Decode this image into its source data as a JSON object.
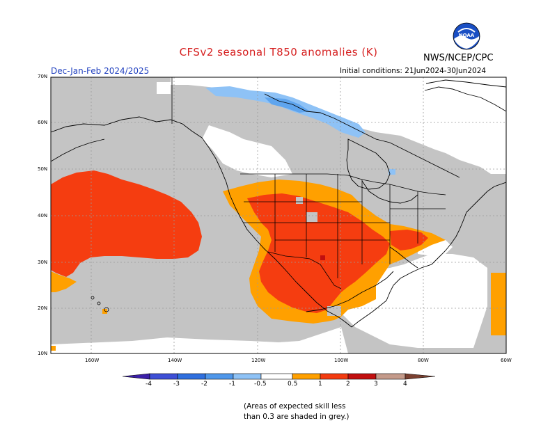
{
  "header": {
    "title": "CFSv2 seasonal T850 anomalies (K)",
    "agency": "NWS/NCEP/CPC",
    "season": "Dec-Jan-Feb 2024/2025",
    "initial_conditions": "Initial conditions: 21Jun2024-30Jun2024",
    "logo_text": "NOAA"
  },
  "map": {
    "region": "North America and Northeast Pacific",
    "lat_labels": [
      "70N",
      "60N",
      "50N",
      "40N",
      "30N",
      "20N",
      "10N"
    ],
    "lon_labels": [
      "160W",
      "140W",
      "120W",
      "100W",
      "80W",
      "60W"
    ]
  },
  "colorbar": {
    "labels": [
      "-4",
      "-3",
      "-2",
      "-1",
      "-0.5",
      "0.5",
      "1",
      "2",
      "3",
      "4"
    ],
    "colors": [
      "#3b1fa8",
      "#3e4fd6",
      "#2f6fde",
      "#4f97ea",
      "#8ec2f6",
      "#ffffff",
      "#ffa000",
      "#f33b10",
      "#c10f0f",
      "#990000",
      "#c49a8a",
      "#7a4030"
    ]
  },
  "skill_note": {
    "line1": "(Areas of expected skill less",
    "line2": "than 0.3 are shaded in grey.)"
  },
  "colors": {
    "grey_low_skill": "#c4c4c4",
    "anomaly_05_1": "#ffa000",
    "anomaly_1_2": "#f53d10",
    "anomaly_2_3": "#c00f0f",
    "negative_05_1": "#8ec2f6",
    "negative_1_2": "#4f97ea"
  }
}
